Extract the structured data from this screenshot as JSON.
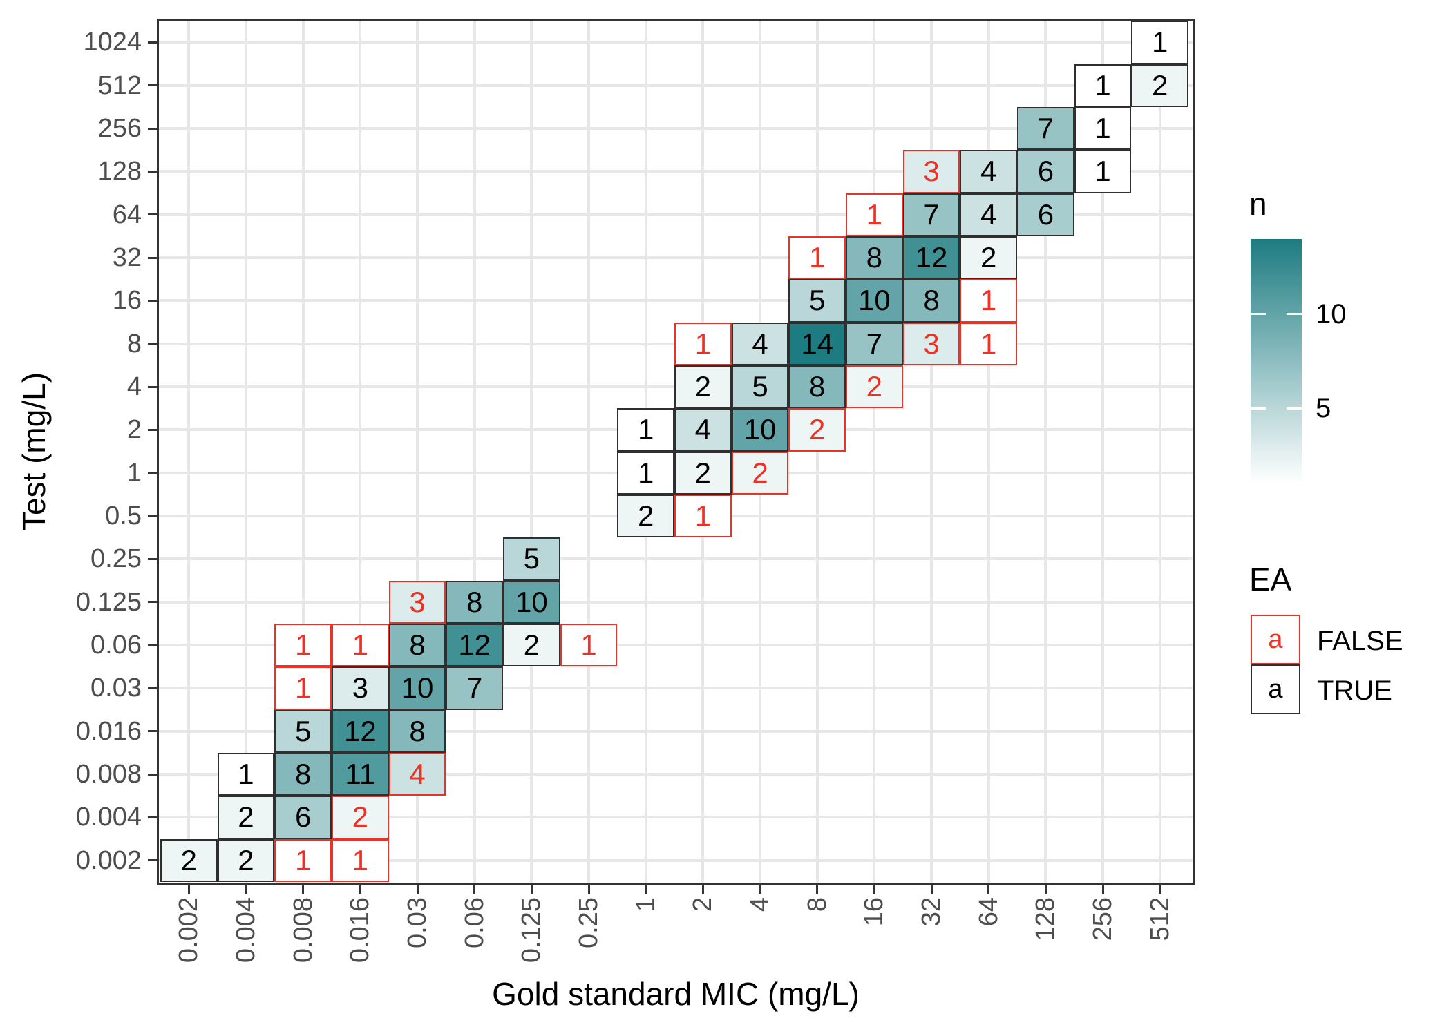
{
  "axes": {
    "x": {
      "title": "Gold standard MIC (mg/L)",
      "labels": [
        "0.002",
        "0.004",
        "0.008",
        "0.016",
        "0.03",
        "0.06",
        "0.125",
        "0.25",
        "1",
        "2",
        "4",
        "8",
        "16",
        "32",
        "64",
        "128",
        "256",
        "512"
      ]
    },
    "y": {
      "title": "Test (mg/L)",
      "labels": [
        "1024",
        "512",
        "256",
        "128",
        "64",
        "32",
        "16",
        "8",
        "4",
        "2",
        "1",
        "0.5",
        "0.25",
        "0.125",
        "0.06",
        "0.03",
        "0.016",
        "0.008",
        "0.004",
        "0.002"
      ]
    }
  },
  "legend_n": {
    "title": "n",
    "min": 1,
    "max": 14,
    "breaks": [
      {
        "value": 10,
        "label": "10"
      },
      {
        "value": 5,
        "label": "5"
      }
    ],
    "high_color": "#1d7c81",
    "low_color": "#ffffff"
  },
  "legend_ea": {
    "title": "EA",
    "items": [
      {
        "key": "a",
        "label": "FALSE",
        "color": "#ee3124"
      },
      {
        "key": "a",
        "label": "TRUE",
        "color": "#2f2f2f"
      }
    ]
  },
  "colors": {
    "false_red": "#ee3124",
    "true_border": "#2f2f2f",
    "grid": "#e7e7e7",
    "axis_text": "#4d4d4d",
    "panel_border": "#333333",
    "number_text": "#000000"
  },
  "chart_data": {
    "type": "heatmap",
    "title": "",
    "xlabel": "Gold standard MIC (mg/L)",
    "ylabel": "Test (mg/L)",
    "x_categories": [
      "0.002",
      "0.004",
      "0.008",
      "0.016",
      "0.03",
      "0.06",
      "0.125",
      "0.25",
      "1",
      "2",
      "4",
      "8",
      "16",
      "32",
      "64",
      "128",
      "256",
      "512"
    ],
    "y_categories_top_to_bottom": [
      "1024",
      "512",
      "256",
      "128",
      "64",
      "32",
      "16",
      "8",
      "4",
      "2",
      "1",
      "0.5",
      "0.25",
      "0.125",
      "0.06",
      "0.03",
      "0.016",
      "0.008",
      "0.004",
      "0.002"
    ],
    "fill_scale": {
      "name": "n",
      "low": "#ffffff",
      "high": "#1d7c81",
      "domain": [
        1,
        14
      ]
    },
    "cells": [
      {
        "x": "512",
        "y": "1024",
        "n": 1,
        "ea": true
      },
      {
        "x": "256",
        "y": "512",
        "n": 1,
        "ea": true
      },
      {
        "x": "512",
        "y": "512",
        "n": 2,
        "ea": true
      },
      {
        "x": "128",
        "y": "256",
        "n": 7,
        "ea": true
      },
      {
        "x": "256",
        "y": "256",
        "n": 1,
        "ea": true
      },
      {
        "x": "32",
        "y": "128",
        "n": 3,
        "ea": false
      },
      {
        "x": "64",
        "y": "128",
        "n": 4,
        "ea": true
      },
      {
        "x": "128",
        "y": "128",
        "n": 6,
        "ea": true
      },
      {
        "x": "256",
        "y": "128",
        "n": 1,
        "ea": true
      },
      {
        "x": "16",
        "y": "64",
        "n": 1,
        "ea": false
      },
      {
        "x": "32",
        "y": "64",
        "n": 7,
        "ea": true
      },
      {
        "x": "64",
        "y": "64",
        "n": 4,
        "ea": true
      },
      {
        "x": "128",
        "y": "64",
        "n": 6,
        "ea": true
      },
      {
        "x": "8",
        "y": "32",
        "n": 1,
        "ea": false
      },
      {
        "x": "16",
        "y": "32",
        "n": 8,
        "ea": true
      },
      {
        "x": "32",
        "y": "32",
        "n": 12,
        "ea": true
      },
      {
        "x": "64",
        "y": "32",
        "n": 2,
        "ea": true
      },
      {
        "x": "8",
        "y": "16",
        "n": 5,
        "ea": true
      },
      {
        "x": "16",
        "y": "16",
        "n": 10,
        "ea": true
      },
      {
        "x": "32",
        "y": "16",
        "n": 8,
        "ea": true
      },
      {
        "x": "64",
        "y": "16",
        "n": 1,
        "ea": false
      },
      {
        "x": "2",
        "y": "8",
        "n": 1,
        "ea": false
      },
      {
        "x": "4",
        "y": "8",
        "n": 4,
        "ea": true
      },
      {
        "x": "8",
        "y": "8",
        "n": 14,
        "ea": true
      },
      {
        "x": "16",
        "y": "8",
        "n": 7,
        "ea": true
      },
      {
        "x": "32",
        "y": "8",
        "n": 3,
        "ea": false
      },
      {
        "x": "64",
        "y": "8",
        "n": 1,
        "ea": false
      },
      {
        "x": "2",
        "y": "4",
        "n": 2,
        "ea": true
      },
      {
        "x": "4",
        "y": "4",
        "n": 5,
        "ea": true
      },
      {
        "x": "8",
        "y": "4",
        "n": 8,
        "ea": true
      },
      {
        "x": "16",
        "y": "4",
        "n": 2,
        "ea": false
      },
      {
        "x": "1",
        "y": "2",
        "n": 1,
        "ea": true
      },
      {
        "x": "2",
        "y": "2",
        "n": 4,
        "ea": true
      },
      {
        "x": "4",
        "y": "2",
        "n": 10,
        "ea": true
      },
      {
        "x": "8",
        "y": "2",
        "n": 2,
        "ea": false
      },
      {
        "x": "1",
        "y": "1",
        "n": 1,
        "ea": true
      },
      {
        "x": "2",
        "y": "1",
        "n": 2,
        "ea": true
      },
      {
        "x": "4",
        "y": "1",
        "n": 2,
        "ea": false
      },
      {
        "x": "1",
        "y": "0.5",
        "n": 2,
        "ea": true
      },
      {
        "x": "2",
        "y": "0.5",
        "n": 1,
        "ea": false
      },
      {
        "x": "0.125",
        "y": "0.25",
        "n": 5,
        "ea": true
      },
      {
        "x": "0.03",
        "y": "0.125",
        "n": 3,
        "ea": false
      },
      {
        "x": "0.06",
        "y": "0.125",
        "n": 8,
        "ea": true
      },
      {
        "x": "0.125",
        "y": "0.125",
        "n": 10,
        "ea": true
      },
      {
        "x": "0.008",
        "y": "0.06",
        "n": 1,
        "ea": false
      },
      {
        "x": "0.016",
        "y": "0.06",
        "n": 1,
        "ea": false
      },
      {
        "x": "0.03",
        "y": "0.06",
        "n": 8,
        "ea": true
      },
      {
        "x": "0.06",
        "y": "0.06",
        "n": 12,
        "ea": true
      },
      {
        "x": "0.125",
        "y": "0.06",
        "n": 2,
        "ea": true
      },
      {
        "x": "0.25",
        "y": "0.06",
        "n": 1,
        "ea": false
      },
      {
        "x": "0.008",
        "y": "0.03",
        "n": 1,
        "ea": false
      },
      {
        "x": "0.016",
        "y": "0.03",
        "n": 3,
        "ea": true
      },
      {
        "x": "0.03",
        "y": "0.03",
        "n": 10,
        "ea": true
      },
      {
        "x": "0.06",
        "y": "0.03",
        "n": 7,
        "ea": true
      },
      {
        "x": "0.008",
        "y": "0.016",
        "n": 5,
        "ea": true
      },
      {
        "x": "0.016",
        "y": "0.016",
        "n": 12,
        "ea": true
      },
      {
        "x": "0.03",
        "y": "0.016",
        "n": 8,
        "ea": true
      },
      {
        "x": "0.004",
        "y": "0.008",
        "n": 1,
        "ea": true
      },
      {
        "x": "0.008",
        "y": "0.008",
        "n": 8,
        "ea": true
      },
      {
        "x": "0.016",
        "y": "0.008",
        "n": 11,
        "ea": true
      },
      {
        "x": "0.03",
        "y": "0.008",
        "n": 4,
        "ea": false
      },
      {
        "x": "0.004",
        "y": "0.004",
        "n": 2,
        "ea": true
      },
      {
        "x": "0.008",
        "y": "0.004",
        "n": 6,
        "ea": true
      },
      {
        "x": "0.016",
        "y": "0.004",
        "n": 2,
        "ea": false
      },
      {
        "x": "0.002",
        "y": "0.002",
        "n": 2,
        "ea": true
      },
      {
        "x": "0.004",
        "y": "0.002",
        "n": 2,
        "ea": true
      },
      {
        "x": "0.008",
        "y": "0.002",
        "n": 1,
        "ea": false
      },
      {
        "x": "0.016",
        "y": "0.002",
        "n": 1,
        "ea": false
      }
    ]
  }
}
